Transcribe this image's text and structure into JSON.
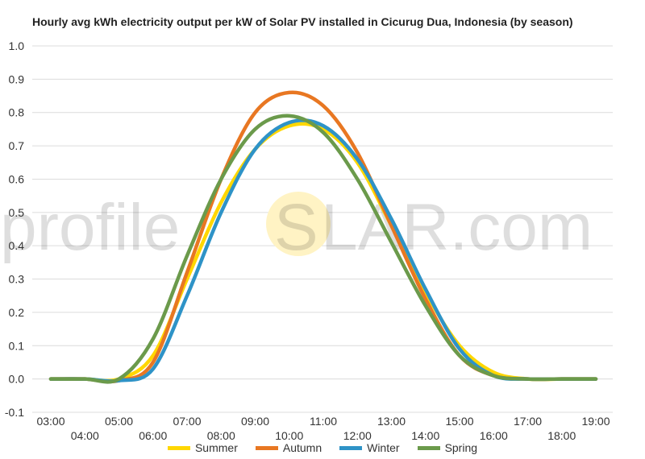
{
  "colors": {
    "summer": "#FFD700",
    "autumn": "#E87722",
    "winter": "#2E93C7",
    "spring": "#6B9A4B",
    "watermark_sun": "#FFF3C4"
  },
  "watermark": {
    "text_left": "profile",
    "text_s": "S",
    "text_right": "LAR.com"
  },
  "chart_data": {
    "type": "line",
    "title": "Hourly avg kWh electricity output per kW of Solar PV installed in Cicurug Dua, Indonesia (by season)",
    "xlabel": "",
    "ylabel": "",
    "x": [
      "03:00",
      "04:00",
      "05:00",
      "06:00",
      "07:00",
      "08:00",
      "09:00",
      "10:00",
      "11:00",
      "12:00",
      "13:00",
      "14:00",
      "15:00",
      "16:00",
      "17:00",
      "18:00",
      "19:00"
    ],
    "ylim": [
      -0.1,
      1.0
    ],
    "yticks": [
      "-0.1",
      "0.0",
      "0.1",
      "0.2",
      "0.3",
      "0.4",
      "0.5",
      "0.6",
      "0.7",
      "0.8",
      "0.9",
      "1.0"
    ],
    "grid": true,
    "legend_position": "bottom",
    "series": [
      {
        "name": "Summer",
        "values": [
          0.0,
          0.0,
          0.0,
          0.07,
          0.3,
          0.53,
          0.69,
          0.76,
          0.75,
          0.65,
          0.46,
          0.26,
          0.1,
          0.02,
          0.0,
          0.0,
          0.0
        ]
      },
      {
        "name": "Autumn",
        "values": [
          0.0,
          0.0,
          -0.005,
          0.05,
          0.32,
          0.6,
          0.8,
          0.86,
          0.82,
          0.68,
          0.46,
          0.24,
          0.07,
          0.01,
          0.0,
          0.0,
          0.0
        ]
      },
      {
        "name": "Winter",
        "values": [
          0.0,
          0.0,
          -0.005,
          0.03,
          0.25,
          0.5,
          0.69,
          0.77,
          0.76,
          0.66,
          0.48,
          0.27,
          0.09,
          0.01,
          0.0,
          0.0,
          0.0
        ]
      },
      {
        "name": "Spring",
        "values": [
          0.0,
          0.0,
          0.0,
          0.12,
          0.37,
          0.6,
          0.75,
          0.79,
          0.74,
          0.6,
          0.41,
          0.22,
          0.07,
          0.01,
          0.0,
          0.0,
          0.0
        ]
      }
    ]
  }
}
